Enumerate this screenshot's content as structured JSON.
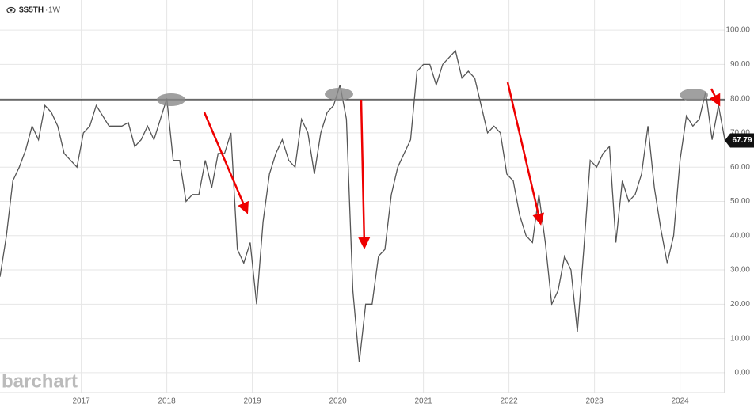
{
  "chart_data": {
    "type": "line",
    "title": "$S5TH",
    "interval": "1W",
    "watermark": "barchart",
    "x": [
      2016.05,
      2016.125,
      2016.2,
      2016.275,
      2016.35,
      2016.425,
      2016.5,
      2016.575,
      2016.65,
      2016.725,
      2016.8,
      2016.875,
      2016.95,
      2017.025,
      2017.1,
      2017.175,
      2017.25,
      2017.325,
      2017.4,
      2017.475,
      2017.55,
      2017.625,
      2017.7,
      2017.775,
      2017.85,
      2017.925,
      2018.0,
      2018.075,
      2018.15,
      2018.225,
      2018.3,
      2018.375,
      2018.45,
      2018.525,
      2018.6,
      2018.675,
      2018.75,
      2018.825,
      2018.9,
      2018.975,
      2019.05,
      2019.125,
      2019.2,
      2019.275,
      2019.35,
      2019.425,
      2019.5,
      2019.575,
      2019.65,
      2019.725,
      2019.8,
      2019.875,
      2019.95,
      2020.025,
      2020.1,
      2020.175,
      2020.25,
      2020.325,
      2020.4,
      2020.475,
      2020.55,
      2020.625,
      2020.7,
      2020.775,
      2020.85,
      2020.925,
      2021.0,
      2021.075,
      2021.15,
      2021.225,
      2021.3,
      2021.375,
      2021.45,
      2021.525,
      2021.6,
      2021.675,
      2021.75,
      2021.825,
      2021.9,
      2021.975,
      2022.05,
      2022.125,
      2022.2,
      2022.275,
      2022.35,
      2022.425,
      2022.5,
      2022.575,
      2022.65,
      2022.725,
      2022.8,
      2022.875,
      2022.95,
      2023.025,
      2023.1,
      2023.175,
      2023.25,
      2023.325,
      2023.4,
      2023.475,
      2023.55,
      2023.625,
      2023.7,
      2023.775,
      2023.85,
      2023.925,
      2024.0,
      2024.075,
      2024.15,
      2024.225,
      2024.3,
      2024.375,
      2024.45,
      2024.525
    ],
    "series": [
      {
        "name": "$S5TH",
        "color": "#555555",
        "values": [
          28,
          40,
          56,
          60,
          65,
          72,
          68,
          78,
          76,
          72,
          64,
          62,
          60,
          70,
          72,
          78,
          75,
          72,
          72,
          72,
          73,
          66,
          68,
          72,
          68,
          74,
          80,
          62,
          62,
          50,
          52,
          52,
          62,
          54,
          64,
          64,
          70,
          36,
          32,
          38,
          20,
          44,
          58,
          64,
          68,
          62,
          60,
          74,
          70,
          58,
          70,
          76,
          78,
          84,
          74,
          24,
          3,
          20,
          20,
          34,
          36,
          52,
          60,
          64,
          68,
          88,
          90,
          90,
          84,
          90,
          92,
          94,
          86,
          88,
          86,
          78,
          70,
          72,
          70,
          58,
          56,
          46,
          40,
          38,
          52,
          38,
          20,
          24,
          34,
          30,
          12,
          36,
          62,
          60,
          64,
          66,
          38,
          56,
          50,
          52,
          58,
          72,
          54,
          42,
          32,
          40,
          62,
          75,
          72,
          74,
          82,
          68,
          78,
          67.79
        ]
      }
    ],
    "hline": 79.7,
    "xlim": [
      2016.05,
      2024.55
    ],
    "xticks": [
      2017,
      2018,
      2019,
      2020,
      2021,
      2022,
      2023,
      2024
    ],
    "ylim": [
      -5.8,
      108.8
    ],
    "yticks": [
      {
        "value": 0,
        "label": "0.00"
      },
      {
        "value": 10,
        "label": "10.00"
      },
      {
        "value": 20,
        "label": "20.00"
      },
      {
        "value": 30,
        "label": "30.00"
      },
      {
        "value": 40,
        "label": "40.00"
      },
      {
        "value": 50,
        "label": "50.00"
      },
      {
        "value": 60,
        "label": "60.00"
      },
      {
        "value": 70,
        "label": "70.00"
      },
      {
        "value": 80,
        "label": "80.00"
      },
      {
        "value": 90,
        "label": "90.00"
      },
      {
        "value": 100,
        "label": "100.00"
      }
    ],
    "grid": true
  }
}
